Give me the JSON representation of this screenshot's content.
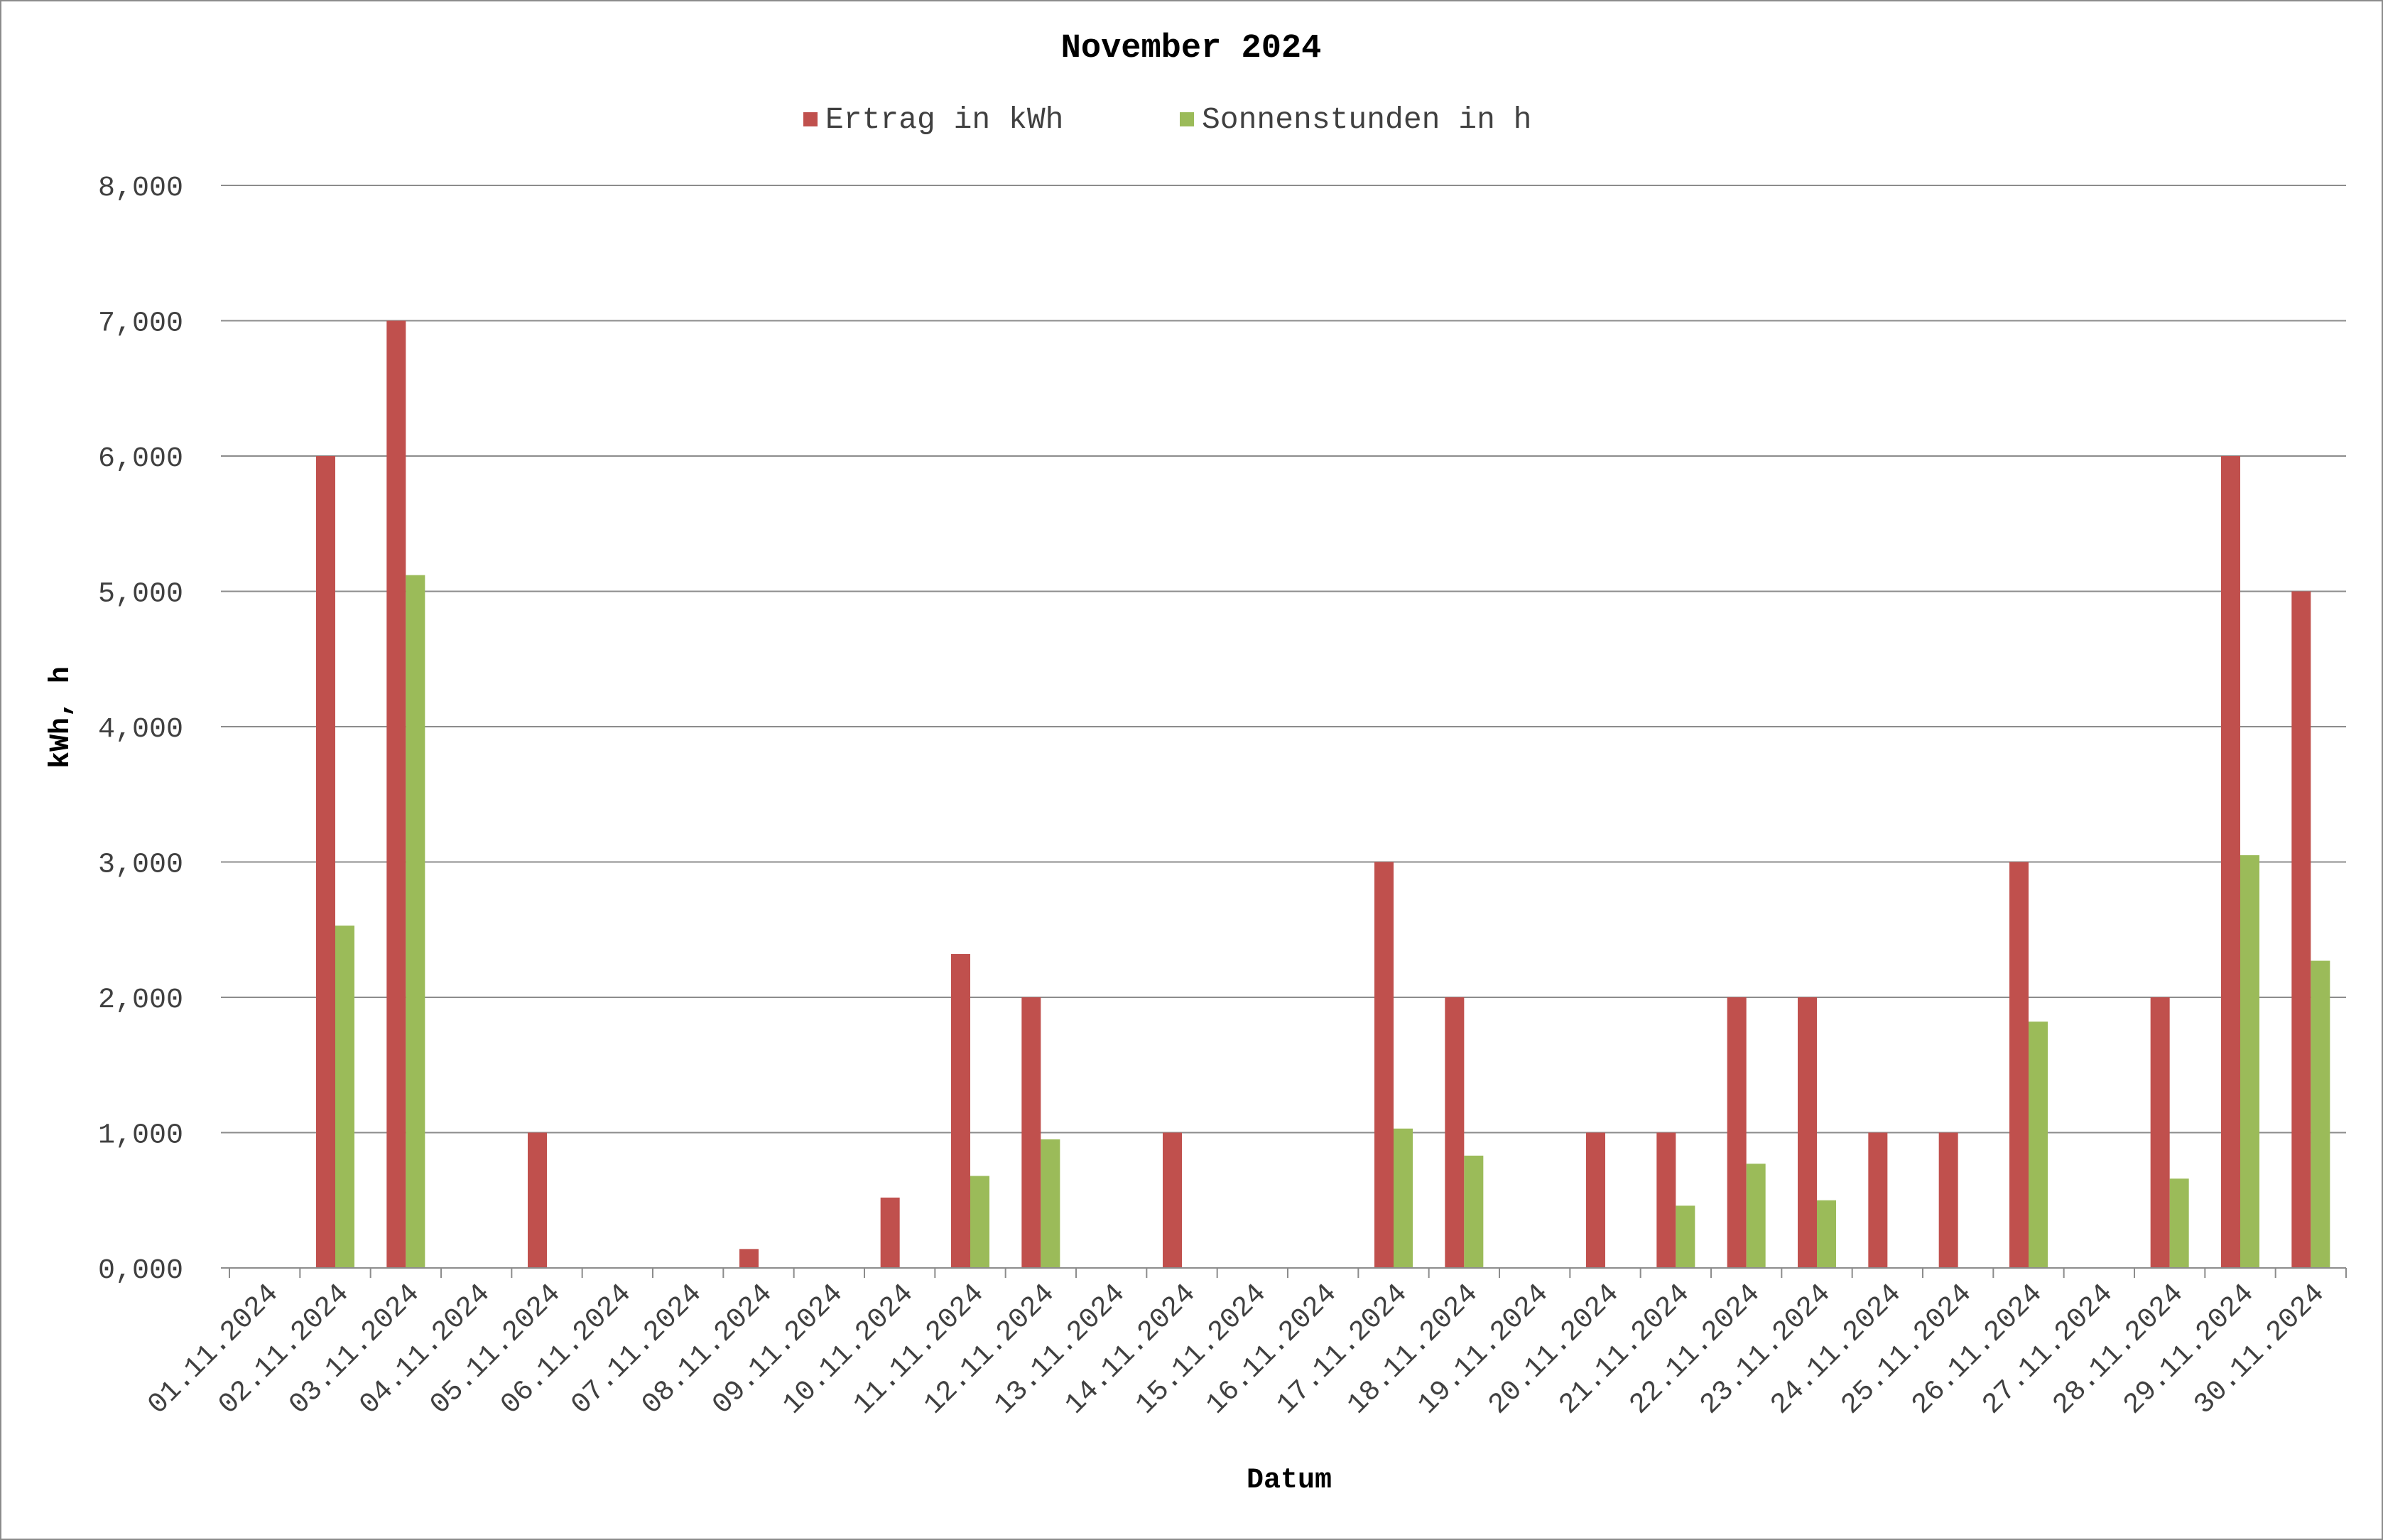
{
  "chart_data": {
    "type": "bar",
    "title": "November 2024",
    "xlabel": "Datum",
    "ylabel": "kWh, h",
    "ylim": [
      0,
      8
    ],
    "yticks": [
      "0,000",
      "1,000",
      "2,000",
      "3,000",
      "4,000",
      "5,000",
      "6,000",
      "7,000",
      "8,000"
    ],
    "grid": true,
    "legend_position": "top-center",
    "categories": [
      "01.11.2024",
      "02.11.2024",
      "03.11.2024",
      "04.11.2024",
      "05.11.2024",
      "06.11.2024",
      "07.11.2024",
      "08.11.2024",
      "09.11.2024",
      "10.11.2024",
      "11.11.2024",
      "12.11.2024",
      "13.11.2024",
      "14.11.2024",
      "15.11.2024",
      "16.11.2024",
      "17.11.2024",
      "18.11.2024",
      "19.11.2024",
      "20.11.2024",
      "21.11.2024",
      "22.11.2024",
      "23.11.2024",
      "24.11.2024",
      "25.11.2024",
      "26.11.2024",
      "27.11.2024",
      "28.11.2024",
      "29.11.2024",
      "30.11.2024"
    ],
    "series": [
      {
        "name": "Ertrag in kWh",
        "color": "#c0504d",
        "values": [
          0,
          6.0,
          7.0,
          0,
          1.0,
          0,
          0,
          0.14,
          0,
          0.52,
          2.32,
          2.0,
          0,
          1.0,
          0,
          0,
          3.0,
          2.0,
          0,
          1.0,
          1.0,
          2.0,
          2.0,
          1.0,
          1.0,
          3.0,
          0,
          2.0,
          6.0,
          5.0
        ]
      },
      {
        "name": "Sonnenstunden in h",
        "color": "#9bbb59",
        "values": [
          0,
          2.53,
          5.12,
          0,
          0,
          0,
          0,
          0,
          0,
          0,
          0.68,
          0.95,
          0,
          0,
          0,
          0,
          1.03,
          0.83,
          0,
          0,
          0.46,
          0.77,
          0.5,
          0,
          0,
          1.82,
          0,
          0.66,
          3.05,
          2.27
        ]
      }
    ]
  }
}
